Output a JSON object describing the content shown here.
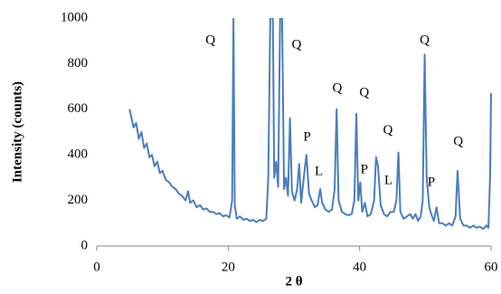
{
  "chart_data": {
    "type": "line",
    "x_label": "2 θ",
    "y_label": "Intensity (counts)",
    "xlim": [
      0,
      60
    ],
    "ylim": [
      0,
      1000
    ],
    "xticks": [
      0,
      20,
      40,
      60
    ],
    "yticks": [
      0,
      200,
      400,
      600,
      800,
      1000
    ],
    "grid": false,
    "series": [
      {
        "color": "#4a7ebb",
        "x": [
          5,
          5.3,
          5.6,
          6,
          6.4,
          6.8,
          7.2,
          7.6,
          8,
          8.4,
          8.8,
          9.2,
          9.6,
          10,
          10.5,
          11,
          11.5,
          12,
          12.5,
          13,
          13.5,
          13.9,
          14.2,
          14.7,
          15.2,
          15.7,
          16.2,
          16.7,
          17.2,
          17.7,
          18.2,
          18.7,
          19.2,
          19.7,
          20.2,
          20.6,
          20.8,
          21,
          21.3,
          21.8,
          22.3,
          22.8,
          23.3,
          23.8,
          24.3,
          24.8,
          25.3,
          25.8,
          26.1,
          26.4,
          26.8,
          27,
          27.3,
          27.6,
          27.9,
          28.2,
          28.5,
          28.8,
          29.1,
          29.4,
          29.7,
          30.1,
          30.5,
          30.8,
          31.1,
          31.5,
          31.9,
          32.3,
          32.7,
          33.2,
          33.6,
          34,
          34.3,
          34.8,
          35.3,
          35.8,
          36.2,
          36.5,
          36.8,
          37.3,
          37.8,
          38.3,
          38.8,
          39.2,
          39.5,
          39.8,
          40.1,
          40.4,
          40.8,
          41.2,
          41.7,
          42.2,
          42.5,
          42.8,
          43.2,
          43.7,
          44.2,
          44.7,
          45.2,
          45.6,
          45.9,
          46.2,
          46.7,
          47.2,
          47.7,
          48.1,
          48.5,
          48.9,
          49.3,
          49.6,
          49.9,
          50.2,
          50.6,
          50.9,
          51.3,
          51.7,
          52.1,
          52.6,
          53.1,
          53.6,
          54.1,
          54.6,
          54.9,
          55.3,
          55.8,
          56.3,
          56.8,
          57.3,
          57.8,
          58.3,
          58.8,
          59.3,
          59.6,
          59.85,
          60
        ],
        "values": [
          600,
          560,
          520,
          540,
          470,
          500,
          430,
          450,
          390,
          400,
          350,
          370,
          320,
          330,
          290,
          280,
          260,
          250,
          230,
          220,
          200,
          240,
          190,
          200,
          170,
          180,
          160,
          165,
          150,
          150,
          140,
          145,
          130,
          135,
          125,
          200,
          1000,
          180,
          120,
          130,
          115,
          120,
          110,
          115,
          105,
          115,
          110,
          120,
          300,
          1000,
          1000,
          300,
          370,
          260,
          1000,
          1000,
          250,
          300,
          220,
          560,
          240,
          200,
          250,
          360,
          190,
          300,
          400,
          230,
          200,
          170,
          180,
          250,
          190,
          160,
          150,
          160,
          250,
          600,
          200,
          150,
          140,
          135,
          140,
          200,
          580,
          200,
          280,
          150,
          190,
          130,
          140,
          200,
          390,
          350,
          180,
          140,
          130,
          150,
          150,
          200,
          410,
          150,
          120,
          130,
          140,
          120,
          140,
          110,
          130,
          200,
          840,
          300,
          170,
          140,
          110,
          170,
          100,
          100,
          90,
          100,
          90,
          130,
          330,
          120,
          90,
          90,
          80,
          90,
          80,
          85,
          75,
          90,
          80,
          300,
          670
        ]
      }
    ],
    "annotations": [
      {
        "text": "Q",
        "x": 17.3,
        "y": 900
      },
      {
        "text": "Q",
        "x": 30.4,
        "y": 880
      },
      {
        "text": "Q",
        "x": 36.6,
        "y": 690
      },
      {
        "text": "Q",
        "x": 40.7,
        "y": 670
      },
      {
        "text": "Q",
        "x": 44.3,
        "y": 505
      },
      {
        "text": "Q",
        "x": 49.9,
        "y": 900
      },
      {
        "text": "Q",
        "x": 55,
        "y": 456
      },
      {
        "text": "P",
        "x": 32,
        "y": 476
      },
      {
        "text": "P",
        "x": 40.7,
        "y": 333
      },
      {
        "text": "P",
        "x": 50.9,
        "y": 278
      },
      {
        "text": "L",
        "x": 33.8,
        "y": 325
      },
      {
        "text": "L",
        "x": 44.4,
        "y": 285
      }
    ]
  }
}
